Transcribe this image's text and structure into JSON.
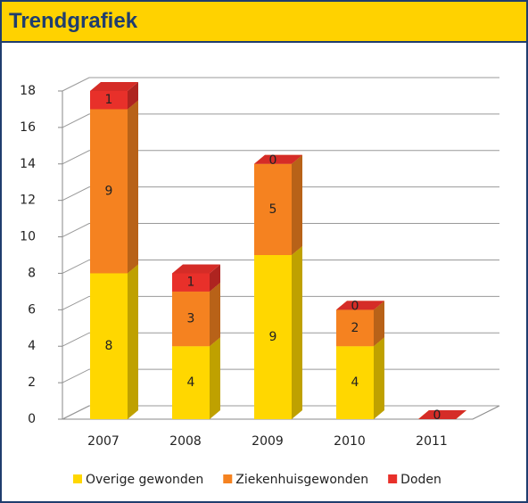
{
  "chart_data": {
    "type": "bar3d_stacked",
    "title": "Trendgrafiek",
    "categories": [
      "2007",
      "2008",
      "2009",
      "2010",
      "2011"
    ],
    "series": [
      {
        "name": "Overige gewonden",
        "color": "#ffd700",
        "values": [
          8,
          4,
          9,
          4,
          0
        ]
      },
      {
        "name": "Ziekenhuisgewonden",
        "color": "#f58220",
        "values": [
          9,
          3,
          5,
          2,
          0
        ]
      },
      {
        "name": "Doden",
        "color": "#e8302a",
        "values": [
          1,
          1,
          0,
          0,
          0
        ]
      }
    ],
    "ylim": [
      0,
      18
    ],
    "yticks": [
      0,
      2,
      4,
      6,
      8,
      10,
      12,
      14,
      16,
      18
    ],
    "grid": true,
    "legend": "bottom"
  }
}
